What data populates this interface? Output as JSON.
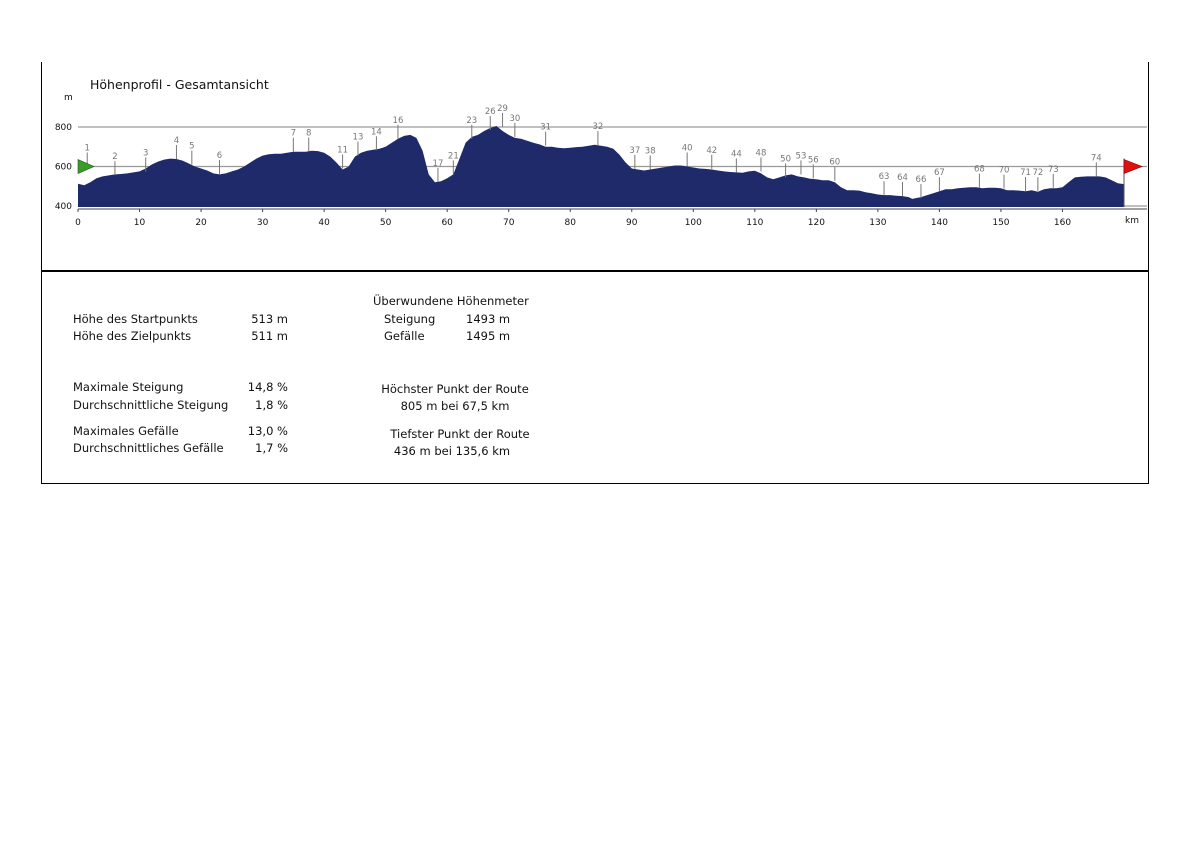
{
  "chart_data": {
    "type": "area",
    "title": "Höhenprofil - Gesamtansicht",
    "ylabel": "m",
    "xlabel": "km",
    "xlim": [
      0,
      170
    ],
    "ylim": [
      400,
      870
    ],
    "y_ticks": [
      400,
      600,
      800
    ],
    "x_ticks": [
      0,
      10,
      20,
      30,
      40,
      50,
      60,
      70,
      80,
      90,
      100,
      110,
      120,
      130,
      140,
      150,
      160
    ],
    "grid_y": [
      400,
      600,
      800
    ],
    "fill_color": "#1f2a6b",
    "start_flag_color": "#3a9a2a",
    "end_flag_color": "#e01010",
    "x": [
      0,
      1,
      2,
      3,
      4,
      5,
      6,
      7,
      8,
      9,
      10,
      11,
      12,
      13,
      14,
      15,
      16,
      17,
      18,
      19,
      20,
      21,
      22,
      23,
      24,
      25,
      26,
      27,
      28,
      29,
      30,
      31,
      32,
      33,
      34,
      35,
      36,
      37,
      38,
      39,
      40,
      41,
      42,
      43,
      44,
      45,
      46,
      47,
      48,
      49,
      50,
      51,
      52,
      53,
      54,
      55,
      56,
      57,
      58,
      59,
      60,
      61,
      62,
      63,
      64,
      65,
      66,
      67,
      68,
      69,
      70,
      71,
      72,
      73,
      74,
      75,
      76,
      77,
      78,
      79,
      80,
      81,
      82,
      83,
      84,
      85,
      86,
      87,
      88,
      89,
      90,
      91,
      92,
      93,
      94,
      95,
      96,
      97,
      98,
      99,
      100,
      101,
      102,
      103,
      104,
      105,
      106,
      107,
      108,
      109,
      110,
      111,
      112,
      113,
      114,
      115,
      116,
      117,
      118,
      119,
      120,
      121,
      122,
      123,
      124,
      125,
      126,
      127,
      128,
      129,
      130,
      131,
      132,
      133,
      134,
      135,
      135.6,
      137,
      138,
      139,
      140,
      141,
      142,
      143,
      144,
      145,
      146,
      147,
      148,
      149,
      150,
      151,
      152,
      153,
      154,
      155,
      156,
      157,
      158,
      159,
      160,
      161,
      162,
      163,
      164,
      165,
      166,
      167,
      168,
      169,
      170
    ],
    "elevation": [
      513,
      505,
      520,
      540,
      550,
      555,
      560,
      562,
      565,
      570,
      575,
      590,
      610,
      625,
      635,
      640,
      638,
      630,
      615,
      600,
      590,
      580,
      565,
      560,
      565,
      575,
      585,
      600,
      620,
      640,
      655,
      662,
      665,
      665,
      670,
      675,
      675,
      675,
      680,
      678,
      670,
      650,
      620,
      585,
      600,
      650,
      670,
      680,
      685,
      690,
      700,
      720,
      740,
      755,
      760,
      745,
      680,
      560,
      520,
      525,
      540,
      560,
      640,
      720,
      750,
      760,
      780,
      795,
      805,
      780,
      760,
      745,
      740,
      730,
      720,
      712,
      700,
      700,
      695,
      692,
      695,
      698,
      700,
      705,
      710,
      705,
      700,
      690,
      660,
      620,
      590,
      585,
      580,
      585,
      590,
      595,
      600,
      605,
      605,
      600,
      595,
      590,
      588,
      585,
      580,
      575,
      572,
      570,
      568,
      575,
      578,
      565,
      545,
      535,
      545,
      555,
      560,
      550,
      545,
      538,
      535,
      530,
      530,
      520,
      495,
      480,
      480,
      478,
      470,
      465,
      458,
      455,
      455,
      452,
      450,
      445,
      436,
      445,
      455,
      465,
      475,
      485,
      485,
      490,
      492,
      495,
      495,
      490,
      492,
      492,
      490,
      480,
      480,
      478,
      475,
      480,
      472,
      485,
      490,
      490,
      495,
      520,
      545,
      548,
      550,
      550,
      550,
      545,
      530,
      515,
      511
    ],
    "waypoints": [
      {
        "label": "1",
        "x": 1.5,
        "y": 600
      },
      {
        "label": "2",
        "x": 6.0,
        "y": 556
      },
      {
        "label": "3",
        "x": 11.0,
        "y": 575
      },
      {
        "label": "4",
        "x": 16.0,
        "y": 638
      },
      {
        "label": "5",
        "x": 18.5,
        "y": 610
      },
      {
        "label": "6",
        "x": 23.0,
        "y": 562
      },
      {
        "label": "7",
        "x": 35.0,
        "y": 675
      },
      {
        "label": "8",
        "x": 37.5,
        "y": 676
      },
      {
        "label": "11",
        "x": 43.0,
        "y": 590
      },
      {
        "label": "13",
        "x": 45.5,
        "y": 655
      },
      {
        "label": "14",
        "x": 48.5,
        "y": 682
      },
      {
        "label": "16",
        "x": 52.0,
        "y": 740
      },
      {
        "label": "17",
        "x": 58.5,
        "y": 522
      },
      {
        "label": "21",
        "x": 61.0,
        "y": 560
      },
      {
        "label": "23",
        "x": 64.0,
        "y": 740
      },
      {
        "label": "26",
        "x": 67.0,
        "y": 785
      },
      {
        "label": "29",
        "x": 69.0,
        "y": 800
      },
      {
        "label": "30",
        "x": 71.0,
        "y": 750
      },
      {
        "label": "31",
        "x": 76.0,
        "y": 706
      },
      {
        "label": "32",
        "x": 84.5,
        "y": 708
      },
      {
        "label": "37",
        "x": 90.5,
        "y": 588
      },
      {
        "label": "38",
        "x": 93.0,
        "y": 585
      },
      {
        "label": "40",
        "x": 99.0,
        "y": 600
      },
      {
        "label": "42",
        "x": 103.0,
        "y": 588
      },
      {
        "label": "44",
        "x": 107.0,
        "y": 570
      },
      {
        "label": "48",
        "x": 111.0,
        "y": 575
      },
      {
        "label": "50",
        "x": 115.0,
        "y": 545
      },
      {
        "label": "53",
        "x": 117.5,
        "y": 560
      },
      {
        "label": "56",
        "x": 119.5,
        "y": 540
      },
      {
        "label": "60",
        "x": 123.0,
        "y": 528
      },
      {
        "label": "63",
        "x": 131.0,
        "y": 455
      },
      {
        "label": "64",
        "x": 134.0,
        "y": 450
      },
      {
        "label": "66",
        "x": 137.0,
        "y": 440
      },
      {
        "label": "67",
        "x": 140.0,
        "y": 475
      },
      {
        "label": "68",
        "x": 146.5,
        "y": 493
      },
      {
        "label": "70",
        "x": 150.5,
        "y": 488
      },
      {
        "label": "71",
        "x": 154.0,
        "y": 476
      },
      {
        "label": "72",
        "x": 156.0,
        "y": 475
      },
      {
        "label": "73",
        "x": 158.5,
        "y": 492
      },
      {
        "label": "74",
        "x": 165.5,
        "y": 550
      }
    ]
  },
  "stats": {
    "start_label": "Höhe des Startpunkts",
    "start_value": "513 m",
    "end_label": "Höhe des Zielpunkts",
    "end_value": "511 m",
    "climb_header": "Überwundene Höhenmeter",
    "ascent_label": "Steigung",
    "ascent_value": "1493 m",
    "descent_label": "Gefälle",
    "descent_value": "1495 m",
    "max_grade_label": "Maximale Steigung",
    "max_grade_value": "14,8 %",
    "avg_grade_label": "Durchschnittliche Steigung",
    "avg_grade_value": "1,8 %",
    "max_down_label": "Maximales Gefälle",
    "max_down_value": "13,0 %",
    "avg_down_label": "Durchschnittliches Gefälle",
    "avg_down_value": "1,7 %",
    "highest_label": "Höchster Punkt der Route",
    "highest_value": "805 m bei 67,5 km",
    "lowest_label": "Tiefster Punkt der Route",
    "lowest_value": "436 m bei 135,6 km"
  }
}
